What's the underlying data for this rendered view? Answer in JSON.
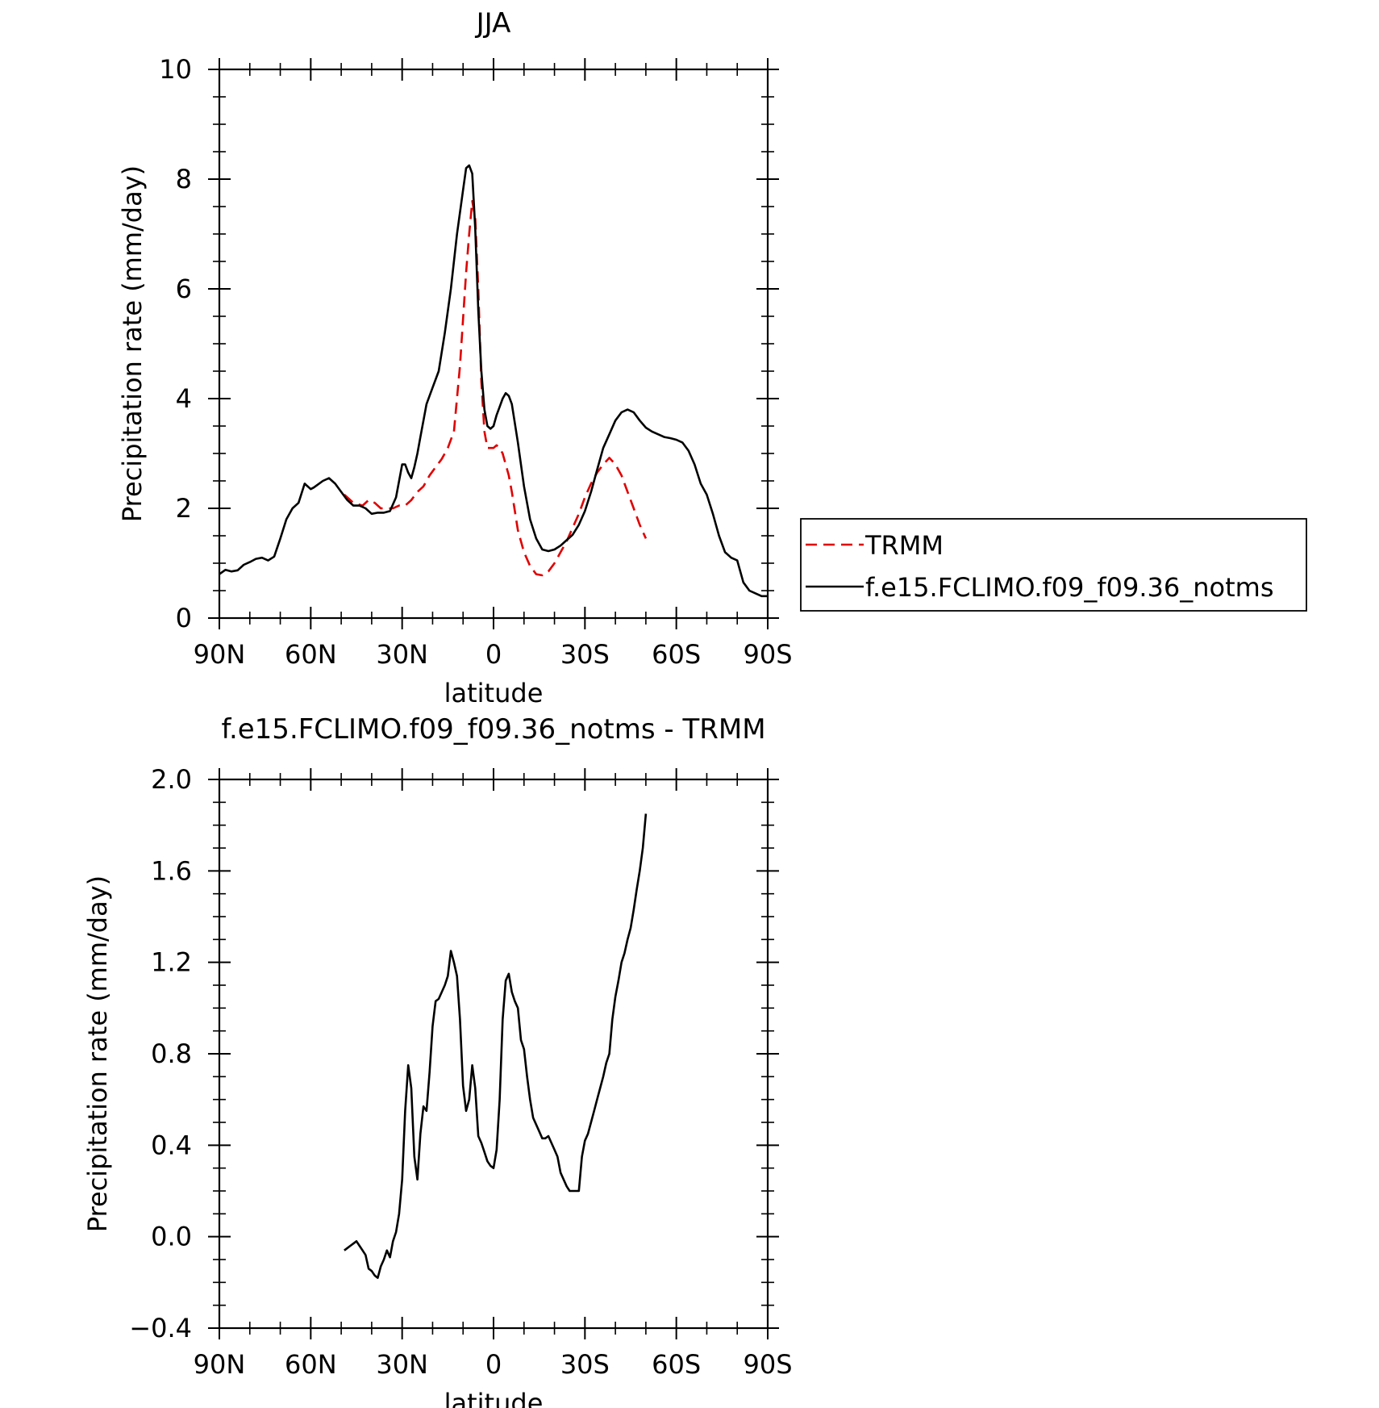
{
  "chart_data": [
    {
      "type": "line",
      "title": "JJA",
      "xlabel": "latitude",
      "ylabel": "Precipitation rate (mm/day)",
      "xlim": [
        90,
        -90
      ],
      "ylim": [
        0,
        10
      ],
      "xticks": [
        90,
        60,
        30,
        0,
        -30,
        -60,
        -90
      ],
      "xtick_labels": [
        "90N",
        "60N",
        "30N",
        "0",
        "30S",
        "60S",
        "90S"
      ],
      "yticks": [
        0,
        2,
        4,
        6,
        8,
        10
      ],
      "ytick_labels": [
        "0",
        "2",
        "4",
        "6",
        "8",
        "10"
      ],
      "legend": {
        "placement": "right",
        "entries": [
          "TRMM",
          "f.e15.FCLIMO.f09_f09.36_notms"
        ]
      },
      "series": [
        {
          "name": "TRMM",
          "color": "#e00000",
          "dash": true,
          "x": [
            49,
            46,
            43,
            41,
            39,
            37,
            35,
            33,
            31,
            29,
            27,
            25,
            23,
            21,
            19,
            17,
            15,
            13,
            11,
            9,
            8,
            7,
            6,
            5,
            4,
            3,
            2,
            1,
            0,
            -1,
            -2,
            -3,
            -4,
            -5,
            -6,
            -8,
            -10,
            -12,
            -14,
            -16,
            -18,
            -20,
            -22,
            -24,
            -26,
            -28,
            -30,
            -32,
            -34,
            -36,
            -38,
            -40,
            -42,
            -44,
            -46,
            -48,
            -50
          ],
          "y": [
            2.25,
            2.1,
            2.05,
            2.15,
            2.1,
            2.0,
            2.0,
            2.0,
            2.05,
            2.05,
            2.15,
            2.3,
            2.4,
            2.6,
            2.75,
            2.9,
            3.1,
            3.4,
            4.6,
            6.3,
            7.0,
            7.6,
            7.3,
            6.0,
            4.3,
            3.4,
            3.1,
            3.1,
            3.1,
            3.15,
            3.1,
            3.0,
            2.8,
            2.6,
            2.3,
            1.6,
            1.2,
            0.95,
            0.8,
            0.78,
            0.85,
            1.0,
            1.2,
            1.4,
            1.65,
            1.9,
            2.2,
            2.45,
            2.65,
            2.8,
            2.92,
            2.8,
            2.6,
            2.3,
            2.0,
            1.7,
            1.45
          ]
        },
        {
          "name": "f.e15.FCLIMO.f09_f09.36_notms",
          "color": "#000000",
          "dash": false,
          "x": [
            90,
            88,
            86,
            84,
            82,
            80,
            78,
            76,
            74,
            72,
            70,
            68,
            66,
            64,
            62,
            60,
            59,
            58,
            56,
            54,
            52,
            50,
            48,
            46,
            44,
            42,
            40,
            38,
            36,
            34,
            32,
            30,
            29,
            28,
            27,
            26,
            25,
            24,
            22,
            20,
            18,
            16,
            14,
            12,
            10,
            9,
            8,
            7,
            6,
            5,
            4,
            3,
            2,
            1,
            0,
            -1,
            -2,
            -3,
            -4,
            -5,
            -6,
            -8,
            -10,
            -12,
            -14,
            -16,
            -18,
            -20,
            -22,
            -24,
            -26,
            -28,
            -30,
            -32,
            -34,
            -36,
            -38,
            -40,
            -42,
            -44,
            -46,
            -48,
            -50,
            -52,
            -54,
            -56,
            -58,
            -60,
            -62,
            -64,
            -66,
            -68,
            -70,
            -72,
            -74,
            -76,
            -78,
            -80,
            -82,
            -84,
            -86,
            -88,
            -90
          ],
          "y": [
            0.8,
            0.88,
            0.85,
            0.87,
            0.97,
            1.02,
            1.08,
            1.1,
            1.05,
            1.12,
            1.45,
            1.8,
            2.0,
            2.1,
            2.45,
            2.35,
            2.38,
            2.42,
            2.5,
            2.55,
            2.45,
            2.3,
            2.15,
            2.05,
            2.05,
            2.0,
            1.9,
            1.92,
            1.92,
            1.95,
            2.2,
            2.8,
            2.8,
            2.65,
            2.55,
            2.75,
            3.0,
            3.3,
            3.9,
            4.2,
            4.5,
            5.2,
            6.0,
            7.0,
            7.8,
            8.2,
            8.25,
            8.1,
            7.1,
            5.6,
            4.5,
            3.8,
            3.5,
            3.45,
            3.5,
            3.7,
            3.85,
            4.0,
            4.1,
            4.05,
            3.9,
            3.2,
            2.4,
            1.8,
            1.45,
            1.25,
            1.22,
            1.25,
            1.32,
            1.42,
            1.52,
            1.7,
            1.95,
            2.3,
            2.7,
            3.1,
            3.35,
            3.6,
            3.75,
            3.8,
            3.75,
            3.6,
            3.47,
            3.4,
            3.35,
            3.3,
            3.28,
            3.25,
            3.2,
            3.05,
            2.8,
            2.45,
            2.25,
            1.9,
            1.5,
            1.2,
            1.1,
            1.05,
            0.65,
            0.5,
            0.45,
            0.4,
            0.4
          ]
        }
      ]
    },
    {
      "type": "line",
      "title": "f.e15.FCLIMO.f09_f09.36_notms - TRMM",
      "xlabel": "latitude",
      "ylabel": "Precipitation rate (mm/day)",
      "xlim": [
        90,
        -90
      ],
      "ylim": [
        -0.4,
        2.0
      ],
      "xticks": [
        90,
        60,
        30,
        0,
        -30,
        -60,
        -90
      ],
      "xtick_labels": [
        "90N",
        "60N",
        "30N",
        "0",
        "30S",
        "60S",
        "90S"
      ],
      "yticks": [
        -0.4,
        0.0,
        0.4,
        0.8,
        1.2,
        1.6,
        2.0
      ],
      "ytick_labels": [
        "−0.4",
        "0.0",
        "0.4",
        "0.8",
        "1.2",
        "1.6",
        "2.0"
      ],
      "series": [
        {
          "color": "#000000",
          "dash": false,
          "x": [
            49,
            48,
            47,
            46,
            45,
            44,
            43,
            42,
            41,
            40,
            39,
            38,
            37,
            36,
            35,
            34,
            33,
            32,
            31,
            30,
            29,
            28,
            27,
            26,
            25,
            24,
            23,
            22,
            21,
            20,
            19,
            18,
            17,
            16,
            15,
            14,
            13,
            12,
            11,
            10,
            9,
            8,
            7,
            6,
            5,
            4,
            3,
            2,
            1,
            0,
            -1,
            -2,
            -3,
            -4,
            -5,
            -6,
            -7,
            -8,
            -9,
            -10,
            -11,
            -12,
            -13,
            -14,
            -15,
            -16,
            -17,
            -18,
            -19,
            -20,
            -21,
            -22,
            -23,
            -24,
            -25,
            -26,
            -27,
            -28,
            -29,
            -30,
            -31,
            -32,
            -33,
            -34,
            -35,
            -36,
            -37,
            -38,
            -39,
            -40,
            -41,
            -42,
            -43,
            -44,
            -45,
            -46,
            -47,
            -48,
            -49,
            -50
          ],
          "y": [
            -0.06,
            -0.05,
            -0.04,
            -0.03,
            -0.02,
            -0.04,
            -0.06,
            -0.08,
            -0.14,
            -0.15,
            -0.17,
            -0.18,
            -0.13,
            -0.1,
            -0.06,
            -0.09,
            -0.02,
            0.02,
            0.1,
            0.25,
            0.55,
            0.75,
            0.65,
            0.35,
            0.25,
            0.45,
            0.57,
            0.55,
            0.72,
            0.92,
            1.03,
            1.04,
            1.07,
            1.1,
            1.14,
            1.25,
            1.2,
            1.14,
            0.95,
            0.66,
            0.55,
            0.6,
            0.75,
            0.65,
            0.44,
            0.41,
            0.37,
            0.33,
            0.31,
            0.3,
            0.38,
            0.6,
            0.95,
            1.12,
            1.15,
            1.07,
            1.03,
            1.0,
            0.86,
            0.82,
            0.7,
            0.6,
            0.52,
            0.49,
            0.46,
            0.43,
            0.43,
            0.44,
            0.41,
            0.38,
            0.35,
            0.28,
            0.25,
            0.22,
            0.2,
            0.2,
            0.2,
            0.2,
            0.35,
            0.42,
            0.45,
            0.5,
            0.55,
            0.6,
            0.65,
            0.7,
            0.76,
            0.8,
            0.95,
            1.05,
            1.12,
            1.2,
            1.24,
            1.3,
            1.35,
            1.43,
            1.52,
            1.6,
            1.7,
            1.85
          ]
        }
      ]
    }
  ]
}
